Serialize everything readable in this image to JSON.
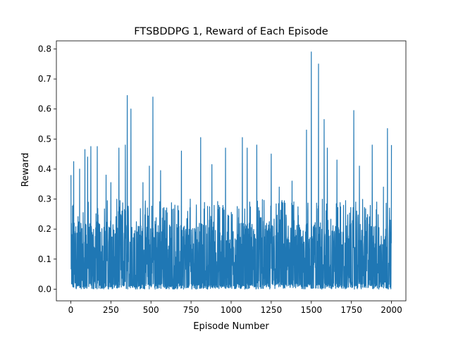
{
  "chart_data": {
    "type": "line",
    "title": "FTSBDDPG 1, Reward of Each Episode",
    "xlabel": "Episode Number",
    "ylabel": "Reward",
    "xlim": [
      -90,
      2090
    ],
    "ylim": [
      -0.039,
      0.827
    ],
    "x_ticks": [
      0,
      250,
      500,
      750,
      1000,
      1250,
      1500,
      1750,
      2000
    ],
    "x_tick_labels": [
      "0",
      "250",
      "500",
      "750",
      "1000",
      "1250",
      "1500",
      "1750",
      "2000"
    ],
    "y_ticks": [
      0.0,
      0.1,
      0.2,
      0.3,
      0.4,
      0.5,
      0.6,
      0.7,
      0.8
    ],
    "y_tick_labels": [
      "0.0",
      "0.1",
      "0.2",
      "0.3",
      "0.4",
      "0.5",
      "0.6",
      "0.7",
      "0.8"
    ],
    "grid": false,
    "series": [
      {
        "color": "#1f77b4",
        "x_start": 1,
        "x_step": 1,
        "count": 2000,
        "peaks": [
          [
            1,
            0.38
          ],
          [
            18,
            0.425
          ],
          [
            55,
            0.4
          ],
          [
            88,
            0.465
          ],
          [
            105,
            0.44
          ],
          [
            125,
            0.475
          ],
          [
            165,
            0.475
          ],
          [
            220,
            0.38
          ],
          [
            250,
            0.355
          ],
          [
            300,
            0.47
          ],
          [
            340,
            0.48
          ],
          [
            352,
            0.645
          ],
          [
            375,
            0.6
          ],
          [
            450,
            0.355
          ],
          [
            490,
            0.41
          ],
          [
            512,
            0.64
          ],
          [
            560,
            0.395
          ],
          [
            690,
            0.46
          ],
          [
            745,
            0.3
          ],
          [
            810,
            0.505
          ],
          [
            880,
            0.415
          ],
          [
            965,
            0.47
          ],
          [
            1070,
            0.505
          ],
          [
            1100,
            0.47
          ],
          [
            1160,
            0.48
          ],
          [
            1250,
            0.45
          ],
          [
            1300,
            0.34
          ],
          [
            1380,
            0.36
          ],
          [
            1470,
            0.53
          ],
          [
            1500,
            0.79
          ],
          [
            1545,
            0.75
          ],
          [
            1580,
            0.565
          ],
          [
            1600,
            0.47
          ],
          [
            1660,
            0.43
          ],
          [
            1765,
            0.595
          ],
          [
            1800,
            0.41
          ],
          [
            1880,
            0.48
          ],
          [
            1950,
            0.34
          ],
          [
            1975,
            0.535
          ],
          [
            2000,
            0.48
          ]
        ],
        "base_max": 0.3,
        "min": 0.0
      }
    ]
  }
}
